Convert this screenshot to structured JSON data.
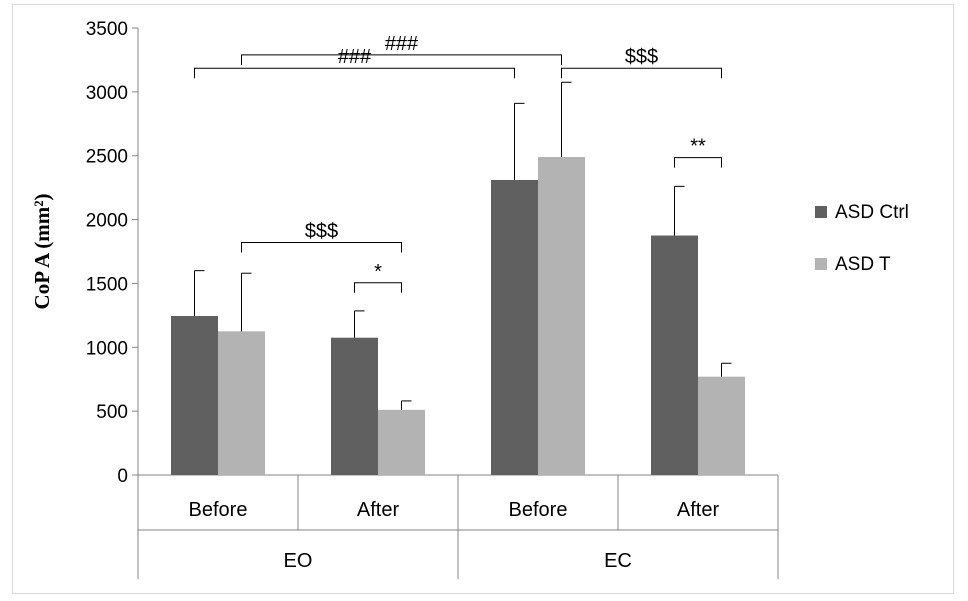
{
  "chart_data": {
    "type": "bar",
    "title": "",
    "ylabel": "CoP A (mm²)",
    "xlabel": "",
    "ylim": [
      0,
      3500
    ],
    "yticks": [
      0,
      500,
      1000,
      1500,
      2000,
      2500,
      3000,
      3500
    ],
    "grid": false,
    "legend_position": "right",
    "categories": [
      "Before",
      "After",
      "Before",
      "After"
    ],
    "groups": [
      {
        "label": "EO",
        "categories": [
          "Before",
          "After"
        ]
      },
      {
        "label": "EC",
        "categories": [
          "Before",
          "After"
        ]
      }
    ],
    "series": [
      {
        "name": "ASD Ctrl",
        "color": "#606060",
        "values": [
          1245,
          1075,
          2310,
          1875
        ],
        "errors": [
          355,
          210,
          600,
          385
        ]
      },
      {
        "name": "ASD T",
        "color": "#b3b3b3",
        "values": [
          1125,
          510,
          2490,
          770
        ],
        "errors": [
          455,
          70,
          585,
          105
        ]
      }
    ],
    "annotations": [
      {
        "label": "###",
        "from": "EO Before ASD Ctrl",
        "to": "EC Before ASD Ctrl"
      },
      {
        "label": "###",
        "from": "EO Before ASD T",
        "to": "EC Before ASD T"
      },
      {
        "label": "$$$",
        "from": "EC Before ASD T",
        "to": "EC After ASD T"
      },
      {
        "label": "$$$",
        "from": "EO Before ASD T",
        "to": "EO After ASD T"
      },
      {
        "label": "*",
        "from": "EO After ASD Ctrl",
        "to": "EO After ASD T"
      },
      {
        "label": "**",
        "from": "EC After ASD Ctrl",
        "to": "EC After ASD T"
      }
    ]
  }
}
